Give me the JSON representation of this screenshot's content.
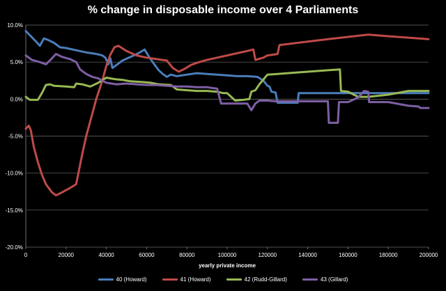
{
  "chart_data": {
    "type": "line",
    "title": "% change in disposable income over 4 Parliaments",
    "xlabel": "yearly private income",
    "ylabel": "",
    "xlim": [
      0,
      200000
    ],
    "ylim": [
      -20,
      10
    ],
    "x_ticks": [
      0,
      20000,
      40000,
      60000,
      80000,
      100000,
      120000,
      140000,
      160000,
      180000,
      200000
    ],
    "x_tick_labels": [
      "0",
      "20000",
      "40000",
      "60000",
      "80000",
      "100000",
      "120000",
      "140000",
      "160000",
      "180000",
      "200000"
    ],
    "y_ticks": [
      10,
      5,
      0,
      -5,
      -10,
      -15,
      -20
    ],
    "y_tick_labels": [
      "10.0%",
      "5.0%",
      "0.0%",
      "-5.0%",
      "-10.0%",
      "-15.0%",
      "-20.0%"
    ],
    "grid": "horizontal",
    "legend_position": "bottom",
    "series": [
      {
        "name": "40 (Howard)",
        "color": "#4a7ebb",
        "points": [
          [
            0,
            9.2
          ],
          [
            2500,
            8.5
          ],
          [
            5000,
            7.8
          ],
          [
            7000,
            7.2
          ],
          [
            9000,
            8.2
          ],
          [
            11000,
            8.0
          ],
          [
            14000,
            7.6
          ],
          [
            17000,
            7.0
          ],
          [
            20000,
            6.9
          ],
          [
            25000,
            6.6
          ],
          [
            30000,
            6.3
          ],
          [
            35000,
            6.1
          ],
          [
            38000,
            5.9
          ],
          [
            39500,
            5.6
          ],
          [
            41000,
            4.7
          ],
          [
            42000,
            5.5
          ],
          [
            43000,
            4.2
          ],
          [
            45000,
            4.6
          ],
          [
            48000,
            5.2
          ],
          [
            52000,
            5.7
          ],
          [
            56000,
            6.2
          ],
          [
            59000,
            6.7
          ],
          [
            61000,
            5.8
          ],
          [
            63000,
            5.0
          ],
          [
            66000,
            3.9
          ],
          [
            68000,
            3.4
          ],
          [
            70000,
            3.0
          ],
          [
            72000,
            3.3
          ],
          [
            75000,
            3.1
          ],
          [
            80000,
            3.3
          ],
          [
            85000,
            3.5
          ],
          [
            90000,
            3.4
          ],
          [
            95000,
            3.3
          ],
          [
            100000,
            3.2
          ],
          [
            105000,
            3.1
          ],
          [
            110000,
            3.1
          ],
          [
            115000,
            3.0
          ],
          [
            118000,
            2.5
          ],
          [
            120000,
            1.8
          ],
          [
            121000,
            1.7
          ],
          [
            122000,
            1.0
          ],
          [
            124000,
            0.9
          ],
          [
            125000,
            -0.5
          ],
          [
            135000,
            -0.5
          ],
          [
            135500,
            0.8
          ],
          [
            150000,
            0.8
          ],
          [
            160000,
            0.8
          ],
          [
            170000,
            0.8
          ],
          [
            180000,
            0.8
          ],
          [
            190000,
            0.8
          ],
          [
            200000,
            0.8
          ]
        ]
      },
      {
        "name": "41 (Howard)",
        "color": "#be4b48",
        "points": [
          [
            0,
            -4.0
          ],
          [
            1500,
            -3.6
          ],
          [
            2500,
            -4.2
          ],
          [
            4000,
            -6.5
          ],
          [
            6000,
            -8.5
          ],
          [
            8000,
            -10.2
          ],
          [
            10000,
            -11.5
          ],
          [
            13000,
            -12.6
          ],
          [
            15000,
            -13.0
          ],
          [
            18000,
            -12.6
          ],
          [
            22000,
            -12.0
          ],
          [
            25000,
            -11.5
          ],
          [
            28000,
            -7.5
          ],
          [
            30000,
            -5.0
          ],
          [
            33000,
            -2.0
          ],
          [
            35000,
            0.0
          ],
          [
            38000,
            2.5
          ],
          [
            40000,
            4.5
          ],
          [
            42000,
            6.0
          ],
          [
            44000,
            7.0
          ],
          [
            46000,
            7.2
          ],
          [
            50000,
            6.5
          ],
          [
            55000,
            5.9
          ],
          [
            60000,
            5.6
          ],
          [
            65000,
            5.4
          ],
          [
            70000,
            5.2
          ],
          [
            73000,
            4.2
          ],
          [
            76000,
            3.7
          ],
          [
            79000,
            4.1
          ],
          [
            82000,
            4.6
          ],
          [
            85000,
            4.9
          ],
          [
            90000,
            5.3
          ],
          [
            95000,
            5.6
          ],
          [
            100000,
            5.9
          ],
          [
            105000,
            6.2
          ],
          [
            110000,
            6.5
          ],
          [
            113000,
            6.7
          ],
          [
            114000,
            5.3
          ],
          [
            118000,
            5.6
          ],
          [
            120000,
            5.9
          ],
          [
            123000,
            6.0
          ],
          [
            125000,
            6.1
          ],
          [
            126000,
            7.3
          ],
          [
            135000,
            7.6
          ],
          [
            150000,
            8.1
          ],
          [
            160000,
            8.4
          ],
          [
            170000,
            8.7
          ],
          [
            180000,
            8.5
          ],
          [
            190000,
            8.3
          ],
          [
            200000,
            8.1
          ]
        ]
      },
      {
        "name": "42 (Rudd-Gillard)",
        "color": "#98b954",
        "points": [
          [
            0,
            0.3
          ],
          [
            2000,
            -0.1
          ],
          [
            6000,
            -0.1
          ],
          [
            8000,
            0.8
          ],
          [
            10000,
            1.9
          ],
          [
            12000,
            2.0
          ],
          [
            14000,
            1.8
          ],
          [
            20000,
            1.7
          ],
          [
            24000,
            1.6
          ],
          [
            25000,
            2.1
          ],
          [
            28000,
            2.0
          ],
          [
            32000,
            1.7
          ],
          [
            36000,
            2.2
          ],
          [
            40000,
            2.9
          ],
          [
            44000,
            2.7
          ],
          [
            48000,
            2.6
          ],
          [
            52000,
            2.4
          ],
          [
            58000,
            2.3
          ],
          [
            62000,
            2.2
          ],
          [
            66000,
            2.0
          ],
          [
            72000,
            1.9
          ],
          [
            75000,
            1.3
          ],
          [
            80000,
            1.2
          ],
          [
            85000,
            1.1
          ],
          [
            90000,
            1.1
          ],
          [
            95000,
            1.0
          ],
          [
            98000,
            0.8
          ],
          [
            100000,
            0.8
          ],
          [
            104000,
            -0.2
          ],
          [
            108000,
            -0.1
          ],
          [
            111000,
            0.0
          ],
          [
            112000,
            1.0
          ],
          [
            114000,
            1.2
          ],
          [
            116000,
            2.0
          ],
          [
            120000,
            3.3
          ],
          [
            125000,
            3.4
          ],
          [
            130000,
            3.5
          ],
          [
            140000,
            3.7
          ],
          [
            150000,
            3.9
          ],
          [
            156000,
            4.0
          ],
          [
            156500,
            1.1
          ],
          [
            160000,
            1.0
          ],
          [
            165000,
            0.3
          ],
          [
            170000,
            0.3
          ],
          [
            180000,
            0.6
          ],
          [
            190000,
            1.1
          ],
          [
            200000,
            1.1
          ]
        ]
      },
      {
        "name": "43 (Gillard)",
        "color": "#7e5fa4",
        "points": [
          [
            0,
            5.9
          ],
          [
            3000,
            5.3
          ],
          [
            7000,
            5.0
          ],
          [
            10000,
            4.7
          ],
          [
            13000,
            5.5
          ],
          [
            15000,
            6.1
          ],
          [
            18000,
            5.7
          ],
          [
            22000,
            5.4
          ],
          [
            25000,
            5.0
          ],
          [
            27000,
            4.0
          ],
          [
            30000,
            3.4
          ],
          [
            33000,
            3.0
          ],
          [
            36000,
            2.8
          ],
          [
            40000,
            2.2
          ],
          [
            45000,
            2.0
          ],
          [
            50000,
            2.1
          ],
          [
            55000,
            2.0
          ],
          [
            60000,
            1.9
          ],
          [
            65000,
            1.9
          ],
          [
            70000,
            1.8
          ],
          [
            75000,
            1.7
          ],
          [
            80000,
            1.7
          ],
          [
            85000,
            1.6
          ],
          [
            90000,
            1.6
          ],
          [
            95000,
            1.4
          ],
          [
            97000,
            -0.6
          ],
          [
            100000,
            -0.6
          ],
          [
            110000,
            -0.6
          ],
          [
            112000,
            -1.5
          ],
          [
            114000,
            -0.6
          ],
          [
            116000,
            -0.2
          ],
          [
            120000,
            -0.2
          ],
          [
            124000,
            -0.3
          ],
          [
            130000,
            -0.3
          ],
          [
            145000,
            -0.3
          ],
          [
            150000,
            -0.3
          ],
          [
            150500,
            -3.2
          ],
          [
            155000,
            -3.2
          ],
          [
            155500,
            -0.4
          ],
          [
            160000,
            -0.4
          ],
          [
            165000,
            0.2
          ],
          [
            168000,
            1.1
          ],
          [
            170000,
            1.0
          ],
          [
            170500,
            -0.4
          ],
          [
            180000,
            -0.4
          ],
          [
            190000,
            -0.9
          ],
          [
            195000,
            -1.0
          ],
          [
            196000,
            -1.2
          ],
          [
            200000,
            -1.2
          ]
        ]
      }
    ]
  }
}
